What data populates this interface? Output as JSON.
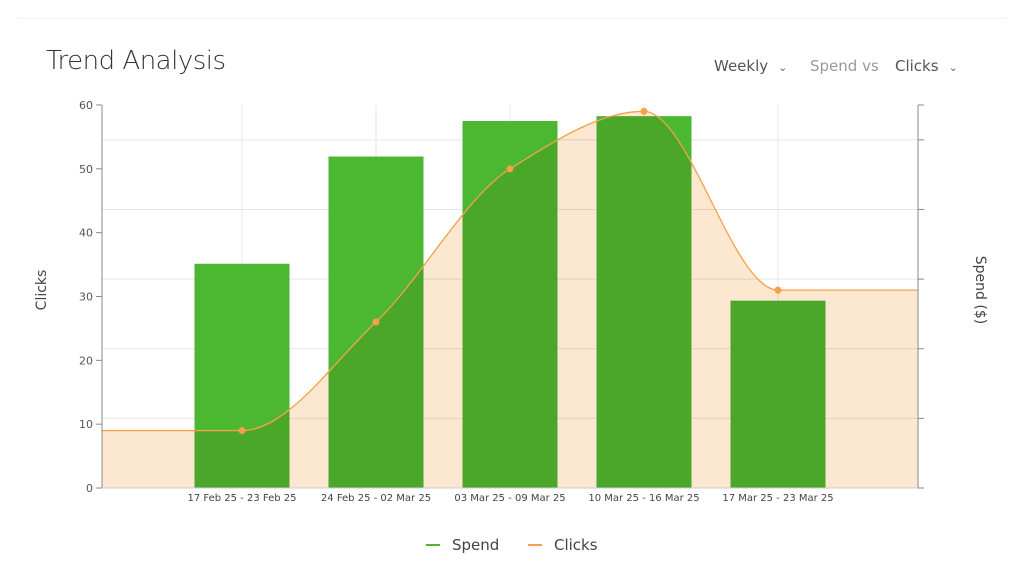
{
  "header": {
    "title": "Trend Analysis",
    "period_select": "Weekly",
    "compare_label": "Spend vs",
    "metric_select": "Clicks"
  },
  "colors": {
    "spend": "#4cb832",
    "clicks": "#f5a149",
    "clicks_fill": "#fbdfc2",
    "overlap": "#82b035"
  },
  "chart_data": {
    "type": "bar+area",
    "categories": [
      "17 Feb 25 - 23 Feb 25",
      "24 Feb 25 - 02 Mar 25",
      "03 Mar 25 - 09 Mar 25",
      "10 Mar 25 - 16 Mar 25",
      "17 Mar 25 - 23 Mar 25"
    ],
    "y_left": {
      "label": "Clicks",
      "ticks": [
        "0",
        "10",
        "20",
        "30",
        "40",
        "50",
        "60"
      ],
      "ylim": [
        0,
        60
      ]
    },
    "y_right": {
      "label": "Spend ($)",
      "ticks_labeled": false,
      "ylim": [
        0,
        5.5
      ]
    },
    "series": [
      {
        "name": "Spend",
        "type": "bar",
        "axis": "right",
        "values": [
          3.22,
          4.76,
          5.27,
          5.34,
          2.69
        ]
      },
      {
        "name": "Clicks",
        "type": "area",
        "axis": "left",
        "values": [
          9,
          26,
          50,
          59,
          31
        ]
      }
    ],
    "grid": true,
    "legend": "bottom"
  }
}
